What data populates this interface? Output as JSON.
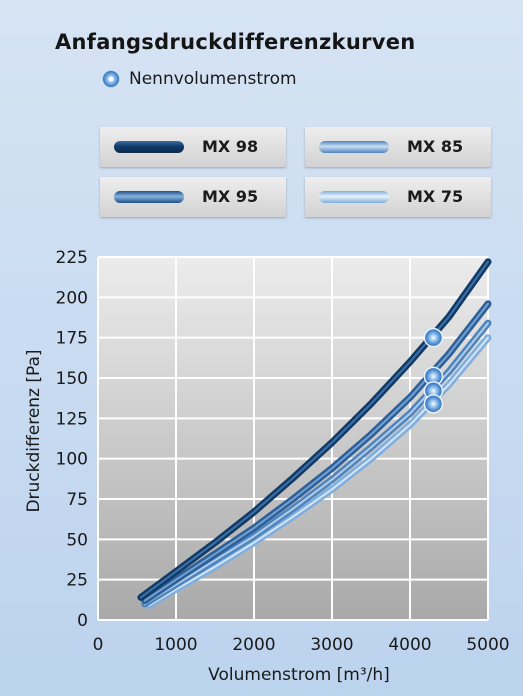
{
  "colors": {
    "background": "#c8daf0",
    "plot_bg_top": "#ececec",
    "plot_bg_bottom": "#a9a9a9",
    "grid": "#ffffff",
    "marker": "#4f8fd6"
  },
  "legend_marker_label": "Nennvolumenstrom",
  "chart_data": {
    "type": "line",
    "title": "Anfangsdruckdifferenzkurven",
    "xlabel": "Volumenstrom [m³/h]",
    "ylabel": "Druckdifferenz  [Pa]",
    "xlim": [
      0,
      5000
    ],
    "ylim": [
      0,
      225
    ],
    "xticks": [
      "0",
      "1000",
      "2000",
      "3000",
      "4000",
      "5000"
    ],
    "yticks": [
      "0",
      "25",
      "50",
      "75",
      "100",
      "125",
      "150",
      "175",
      "200",
      "225"
    ],
    "grid": true,
    "legend_position": "top",
    "series": [
      {
        "name": "MX 98",
        "color": "#123a66",
        "highlight": "#4a7fb8",
        "width": 7,
        "x": [
          550,
          1000,
          1500,
          2000,
          2500,
          3000,
          3500,
          4000,
          4500,
          5000
        ],
        "y": [
          14,
          30,
          48,
          67,
          88,
          110,
          134,
          160,
          188,
          222
        ],
        "nominal": {
          "x": 4300,
          "y": 175
        }
      },
      {
        "name": "MX 95",
        "color": "#2d5f99",
        "highlight": "#86b2de",
        "width": 7,
        "x": [
          600,
          1000,
          1500,
          2000,
          2500,
          3000,
          3500,
          4000,
          4500,
          5000
        ],
        "y": [
          12,
          25,
          41,
          57,
          75,
          94,
          115,
          138,
          165,
          196
        ],
        "nominal": {
          "x": 4300,
          "y": 151
        }
      },
      {
        "name": "MX 85",
        "color": "#4f84bd",
        "highlight": "#c9def3",
        "width": 7,
        "x": [
          600,
          1000,
          1500,
          2000,
          2500,
          3000,
          3500,
          4000,
          4500,
          5000
        ],
        "y": [
          10,
          22,
          37,
          52,
          69,
          87,
          107,
          128,
          154,
          184
        ],
        "nominal": {
          "x": 4300,
          "y": 142
        }
      },
      {
        "name": "MX 75",
        "color": "#7eaedd",
        "highlight": "#e9f3fc",
        "width": 7,
        "x": [
          650,
          1000,
          1500,
          2000,
          2500,
          3000,
          3500,
          4000,
          4500,
          5000
        ],
        "y": [
          9,
          19,
          33,
          48,
          64,
          81,
          100,
          121,
          146,
          175
        ],
        "nominal": {
          "x": 4300,
          "y": 134
        }
      }
    ]
  }
}
